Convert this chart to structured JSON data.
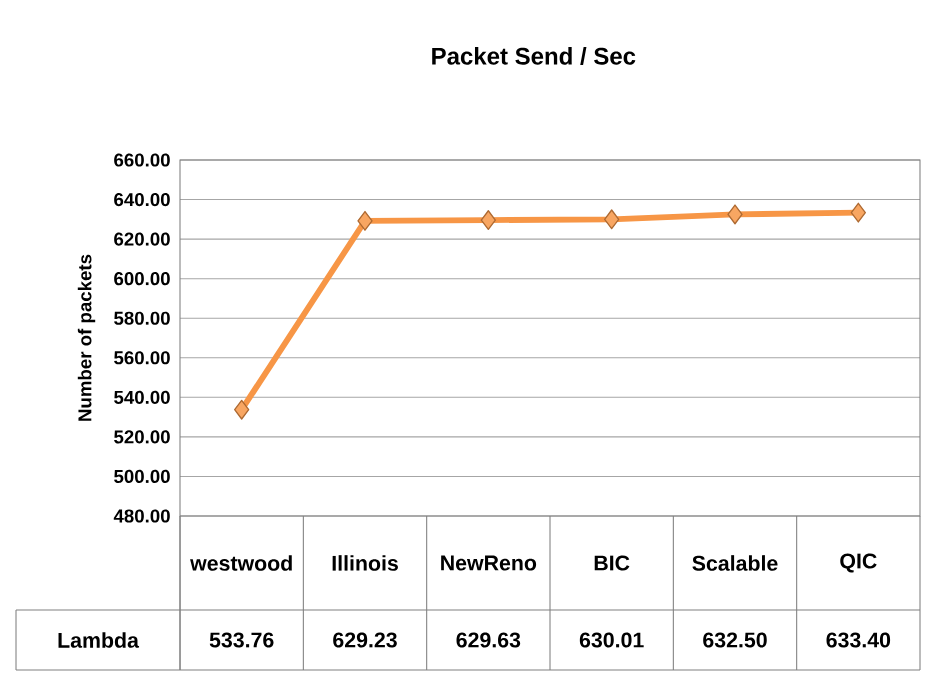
{
  "chart_data": {
    "type": "line",
    "title": "Packet Send / Sec",
    "ylabel": "Number of packets",
    "categories": [
      "westwood",
      "Illinois",
      "NewReno",
      "BIC",
      "Scalable",
      "QIC"
    ],
    "series": [
      {
        "name": "Lambda",
        "color": "#f79646",
        "values": [
          533.76,
          629.23,
          629.63,
          630.01,
          632.5,
          633.4
        ],
        "value_labels": [
          "533.76",
          "629.23",
          "629.63",
          "630.01",
          "632.50",
          "633.40"
        ]
      }
    ],
    "ylim": [
      480,
      660
    ],
    "yticks": [
      {
        "value": 480,
        "label": "480.00"
      },
      {
        "value": 500,
        "label": "500.00"
      },
      {
        "value": 520,
        "label": "520.00"
      },
      {
        "value": 540,
        "label": "540.00"
      },
      {
        "value": 560,
        "label": "560.00"
      },
      {
        "value": 580,
        "label": "580.00"
      },
      {
        "value": 600,
        "label": "600.00"
      },
      {
        "value": 620,
        "label": "620.00"
      },
      {
        "value": 640,
        "label": "640.00"
      },
      {
        "value": 660,
        "label": "660.00"
      }
    ],
    "grid": "y",
    "marker": "diamond",
    "line_style": "solid"
  }
}
